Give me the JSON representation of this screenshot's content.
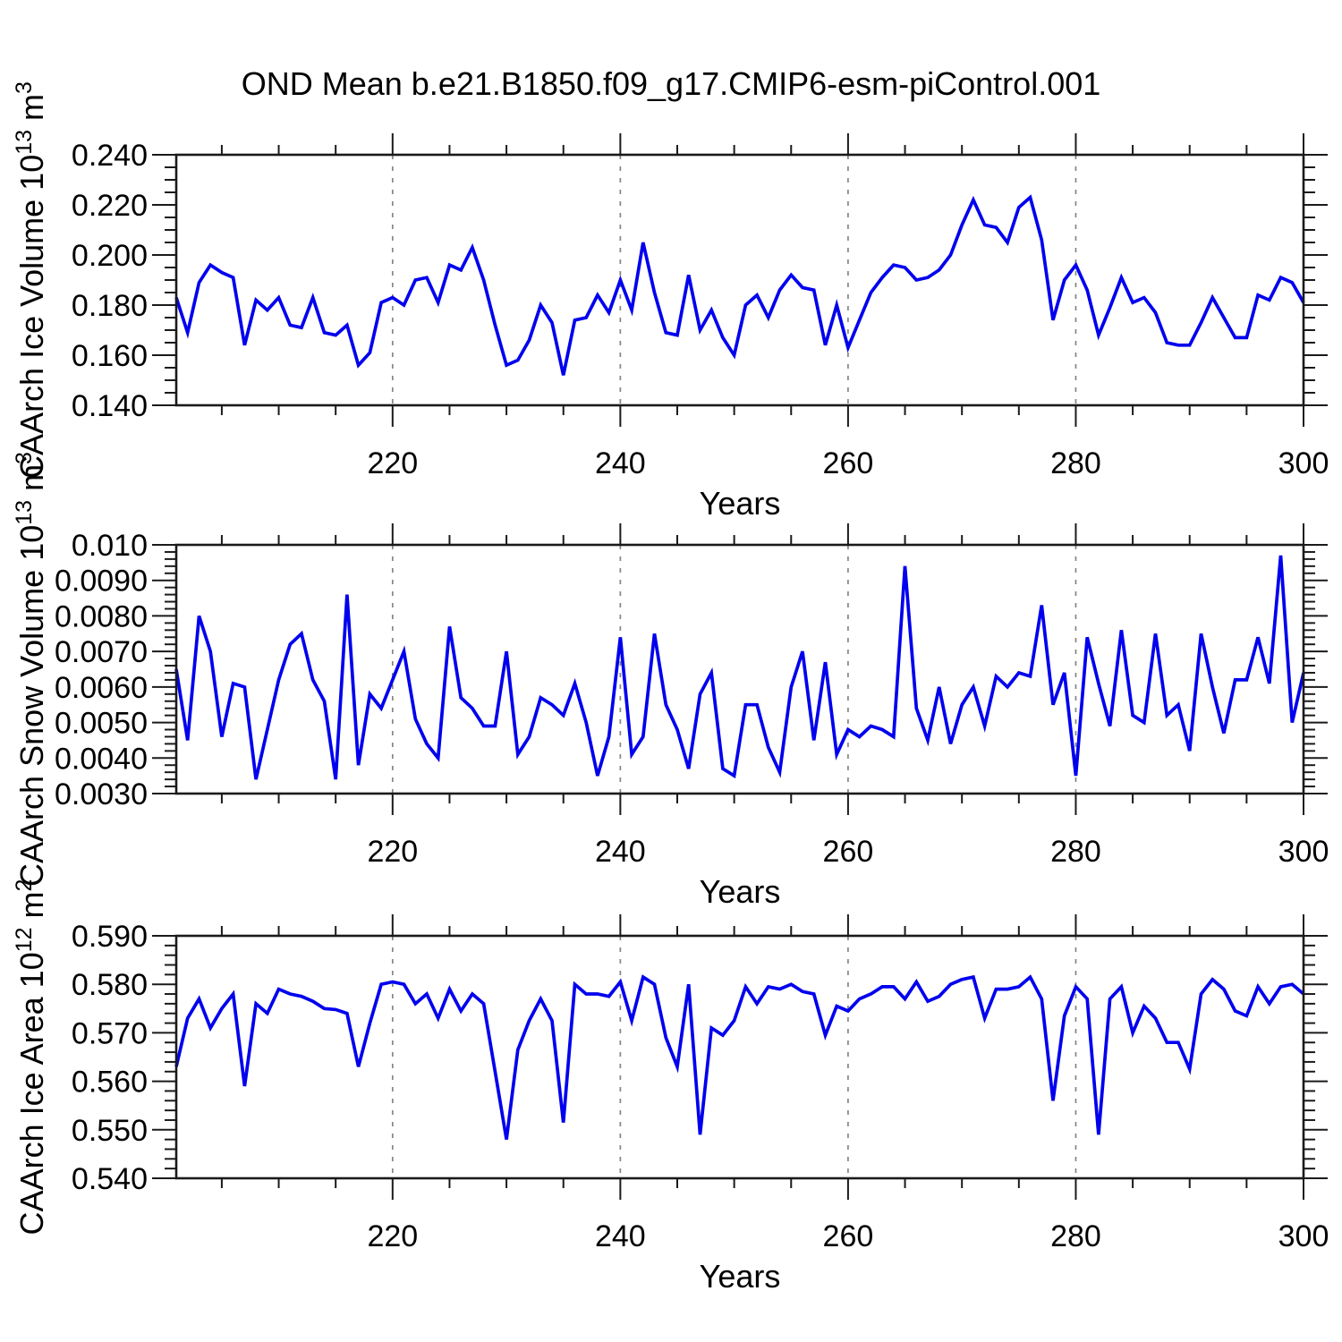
{
  "figure": {
    "title": "OND Mean b.e21.B1850.f09_g17.CMIP6-esm-piControl.001",
    "background": "#ffffff"
  },
  "style": {
    "line_color": "#0000EE",
    "axis_color": "#1a1a1a",
    "grid_color": "#858585",
    "text_color": "#000000"
  },
  "years": [
    201,
    202,
    203,
    204,
    205,
    206,
    207,
    208,
    209,
    210,
    211,
    212,
    213,
    214,
    215,
    216,
    217,
    218,
    219,
    220,
    221,
    222,
    223,
    224,
    225,
    226,
    227,
    228,
    229,
    230,
    231,
    232,
    233,
    234,
    235,
    236,
    237,
    238,
    239,
    240,
    241,
    242,
    243,
    244,
    245,
    246,
    247,
    248,
    249,
    250,
    251,
    252,
    253,
    254,
    255,
    256,
    257,
    258,
    259,
    260,
    261,
    262,
    263,
    264,
    265,
    266,
    267,
    268,
    269,
    270,
    271,
    272,
    273,
    274,
    275,
    276,
    277,
    278,
    279,
    280,
    281,
    282,
    283,
    284,
    285,
    286,
    287,
    288,
    289,
    290,
    291,
    292,
    293,
    294,
    295,
    296,
    297,
    298,
    299,
    300
  ],
  "chart_data": [
    {
      "type": "line",
      "title": "",
      "xlabel": "Years",
      "ylabel": "CAArch Ice Volume 10^13 m^3",
      "ylabel_parts": [
        {
          "t": "CAArch Ice Volume 10"
        },
        {
          "t": "13",
          "sup": true
        },
        {
          "t": " m"
        },
        {
          "t": "3",
          "sup": true
        }
      ],
      "xlim": [
        201,
        300
      ],
      "x_major": [
        220,
        240,
        260,
        280,
        300
      ],
      "x_major_labels": [
        "220",
        "240",
        "260",
        "280",
        "300"
      ],
      "x_minor_step": 5,
      "x_gridlines": [
        220,
        240,
        260,
        280
      ],
      "ylim": [
        0.14,
        0.24
      ],
      "y_major": [
        0.14,
        0.16,
        0.18,
        0.2,
        0.22,
        0.24
      ],
      "y_major_labels": [
        "0.140",
        "0.160",
        "0.180",
        "0.200",
        "0.220",
        "0.240"
      ],
      "y_minor_step": 0.005,
      "grid": "x-dashed",
      "legend": "none",
      "values": [
        0.183,
        0.169,
        0.189,
        0.196,
        0.193,
        0.191,
        0.164,
        0.182,
        0.178,
        0.183,
        0.172,
        0.171,
        0.183,
        0.169,
        0.168,
        0.172,
        0.156,
        0.161,
        0.181,
        0.183,
        0.18,
        0.19,
        0.191,
        0.181,
        0.196,
        0.194,
        0.203,
        0.19,
        0.172,
        0.156,
        0.158,
        0.166,
        0.18,
        0.173,
        0.152,
        0.174,
        0.175,
        0.184,
        0.177,
        0.19,
        0.178,
        0.205,
        0.185,
        0.169,
        0.168,
        0.192,
        0.17,
        0.178,
        0.167,
        0.16,
        0.18,
        0.184,
        0.175,
        0.186,
        0.192,
        0.187,
        0.186,
        0.164,
        0.18,
        0.163,
        0.174,
        0.185,
        0.191,
        0.196,
        0.195,
        0.19,
        0.191,
        0.194,
        0.2,
        0.212,
        0.222,
        0.212,
        0.211,
        0.205,
        0.219,
        0.223,
        0.206,
        0.174,
        0.19,
        0.196,
        0.186,
        0.168,
        0.179,
        0.191,
        0.181,
        0.183,
        0.177,
        0.165,
        0.164,
        0.164,
        0.173,
        0.183,
        0.175,
        0.167,
        0.167,
        0.184,
        0.182,
        0.191,
        0.189,
        0.181
      ]
    },
    {
      "type": "line",
      "title": "",
      "xlabel": "Years",
      "ylabel": "CAArch Snow Volume 10^13 m^3",
      "ylabel_parts": [
        {
          "t": "CAArch Snow Volume 10"
        },
        {
          "t": "13",
          "sup": true
        },
        {
          "t": " m"
        },
        {
          "t": "3",
          "sup": true
        }
      ],
      "xlim": [
        201,
        300
      ],
      "x_major": [
        220,
        240,
        260,
        280,
        300
      ],
      "x_major_labels": [
        "220",
        "240",
        "260",
        "280",
        "300"
      ],
      "x_minor_step": 5,
      "x_gridlines": [
        220,
        240,
        260,
        280
      ],
      "ylim": [
        0.003,
        0.01
      ],
      "y_major": [
        0.003,
        0.004,
        0.005,
        0.006,
        0.007,
        0.008,
        0.009,
        0.01
      ],
      "y_major_labels": [
        "0.0030",
        "0.0040",
        "0.0050",
        "0.0060",
        "0.0070",
        "0.0080",
        "0.0090",
        "0.010"
      ],
      "y_minor_step": 0.0002,
      "grid": "x-dashed",
      "legend": "none",
      "values": [
        0.0065,
        0.0045,
        0.008,
        0.007,
        0.0046,
        0.0061,
        0.006,
        0.0034,
        0.0048,
        0.0062,
        0.0072,
        0.0075,
        0.0062,
        0.0056,
        0.0034,
        0.0086,
        0.0038,
        0.0058,
        0.0054,
        0.0062,
        0.007,
        0.0051,
        0.0044,
        0.004,
        0.0077,
        0.0057,
        0.0054,
        0.0049,
        0.0049,
        0.007,
        0.0041,
        0.0046,
        0.0057,
        0.0055,
        0.0052,
        0.0061,
        0.005,
        0.0035,
        0.0046,
        0.0074,
        0.0041,
        0.0046,
        0.0075,
        0.0055,
        0.0048,
        0.0037,
        0.0058,
        0.0064,
        0.0037,
        0.0035,
        0.0055,
        0.0055,
        0.0043,
        0.0036,
        0.006,
        0.007,
        0.0045,
        0.0067,
        0.0041,
        0.0048,
        0.0046,
        0.0049,
        0.0048,
        0.0046,
        0.0094,
        0.0054,
        0.0045,
        0.006,
        0.0044,
        0.0055,
        0.006,
        0.0049,
        0.0063,
        0.006,
        0.0064,
        0.0063,
        0.0083,
        0.0055,
        0.0064,
        0.0035,
        0.0074,
        0.0061,
        0.0049,
        0.0076,
        0.0052,
        0.005,
        0.0075,
        0.0052,
        0.0055,
        0.0042,
        0.0075,
        0.006,
        0.0047,
        0.0062,
        0.0062,
        0.0074,
        0.0061,
        0.0097,
        0.005,
        0.0064
      ]
    },
    {
      "type": "line",
      "title": "",
      "xlabel": "Years",
      "ylabel": "CAArch Ice Area 10^12 m^2",
      "ylabel_parts": [
        {
          "t": "CAArch Ice Area 10"
        },
        {
          "t": "12",
          "sup": true
        },
        {
          "t": " m"
        },
        {
          "t": "2",
          "sup": true
        }
      ],
      "xlim": [
        201,
        300
      ],
      "x_major": [
        220,
        240,
        260,
        280,
        300
      ],
      "x_major_labels": [
        "220",
        "240",
        "260",
        "280",
        "300"
      ],
      "x_minor_step": 5,
      "x_gridlines": [
        220,
        240,
        260,
        280
      ],
      "ylim": [
        0.54,
        0.59
      ],
      "y_major": [
        0.54,
        0.55,
        0.56,
        0.57,
        0.58,
        0.59
      ],
      "y_major_labels": [
        "0.540",
        "0.550",
        "0.560",
        "0.570",
        "0.580",
        "0.590"
      ],
      "y_minor_step": 0.002,
      "grid": "x-dashed",
      "legend": "none",
      "values": [
        0.563,
        0.573,
        0.577,
        0.571,
        0.575,
        0.578,
        0.559,
        0.576,
        0.574,
        0.579,
        0.578,
        0.5775,
        0.5765,
        0.575,
        0.5748,
        0.574,
        0.563,
        0.572,
        0.58,
        0.5805,
        0.58,
        0.576,
        0.578,
        0.573,
        0.579,
        0.5745,
        0.578,
        0.576,
        0.562,
        0.548,
        0.5665,
        0.5725,
        0.577,
        0.5725,
        0.5515,
        0.58,
        0.578,
        0.578,
        0.5775,
        0.5805,
        0.5725,
        0.5815,
        0.58,
        0.569,
        0.563,
        0.58,
        0.549,
        0.571,
        0.5695,
        0.5725,
        0.5795,
        0.576,
        0.5795,
        0.579,
        0.58,
        0.5785,
        0.578,
        0.5695,
        0.5755,
        0.5745,
        0.577,
        0.578,
        0.5795,
        0.5795,
        0.577,
        0.5805,
        0.5765,
        0.5775,
        0.58,
        0.581,
        0.5815,
        0.573,
        0.579,
        0.579,
        0.5795,
        0.5815,
        0.577,
        0.556,
        0.5735,
        0.5795,
        0.577,
        0.549,
        0.577,
        0.5795,
        0.57,
        0.5755,
        0.573,
        0.568,
        0.568,
        0.5625,
        0.578,
        0.581,
        0.579,
        0.5745,
        0.5735,
        0.5795,
        0.576,
        0.5795,
        0.58,
        0.578
      ]
    }
  ]
}
